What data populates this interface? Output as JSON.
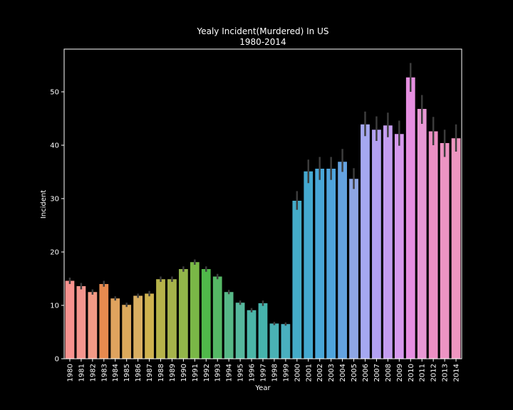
{
  "chart_data": {
    "type": "bar",
    "title": "Yealy Incident(Murdered) In US",
    "subtitle": "1980-2014",
    "xlabel": "Year",
    "ylabel": "Incident",
    "ylim": [
      0,
      58
    ],
    "yticks": [
      0,
      10,
      20,
      30,
      40,
      50
    ],
    "grid": false,
    "categories": [
      "1980",
      "1981",
      "1982",
      "1983",
      "1984",
      "1985",
      "1986",
      "1987",
      "1988",
      "1989",
      "1990",
      "1991",
      "1992",
      "1993",
      "1994",
      "1995",
      "1996",
      "1997",
      "1998",
      "1999",
      "2000",
      "2001",
      "2002",
      "2003",
      "2004",
      "2005",
      "2006",
      "2007",
      "2008",
      "2009",
      "2010",
      "2011",
      "2012",
      "2013",
      "2014"
    ],
    "values": [
      14.6,
      13.6,
      12.5,
      14.0,
      11.3,
      10.1,
      11.8,
      12.2,
      14.9,
      14.9,
      16.8,
      18.1,
      16.8,
      15.4,
      12.5,
      10.5,
      9.1,
      10.4,
      6.6,
      6.5,
      29.6,
      35.1,
      35.6,
      35.6,
      36.9,
      33.7,
      43.9,
      42.9,
      43.7,
      42.1,
      52.7,
      46.8,
      42.6,
      40.4,
      41.3
    ],
    "error_low": [
      14.0,
      13.0,
      12.0,
      13.5,
      10.9,
      9.7,
      11.4,
      11.7,
      14.4,
      14.4,
      16.3,
      17.6,
      16.3,
      14.9,
      12.1,
      10.1,
      8.7,
      9.9,
      6.3,
      6.2,
      27.9,
      32.9,
      33.5,
      33.5,
      35.0,
      31.8,
      41.7,
      40.8,
      41.5,
      39.9,
      50.0,
      44.0,
      40.0,
      37.8,
      38.8
    ],
    "error_high": [
      15.2,
      14.2,
      13.0,
      14.6,
      11.7,
      10.5,
      12.2,
      12.7,
      15.4,
      15.4,
      17.3,
      18.6,
      17.3,
      15.9,
      12.9,
      10.9,
      9.5,
      10.9,
      6.9,
      6.8,
      31.4,
      37.3,
      37.8,
      37.8,
      39.3,
      35.7,
      46.3,
      45.4,
      46.1,
      44.6,
      55.4,
      49.4,
      45.3,
      42.9,
      43.9
    ],
    "colors": [
      "#f7928f",
      "#f4958e",
      "#f29a86",
      "#e68a4f",
      "#e0a35e",
      "#dca95c",
      "#d9ae61",
      "#cfb24f",
      "#b6b34a",
      "#a5b34b",
      "#92b64a",
      "#7ab747",
      "#50b84a",
      "#55b865",
      "#57b887",
      "#56b79d",
      "#4bb5a7",
      "#46b3ac",
      "#4ab1b4",
      "#49afbf",
      "#44abc8",
      "#44a9d0",
      "#48a6d7",
      "#4fa4dc",
      "#64a2e0",
      "#8ea6e4",
      "#a5a8f0",
      "#b3a1f1",
      "#c49df0",
      "#d699ed",
      "#e68fe1",
      "#e898d4",
      "#ec8fc3",
      "#ed94c3",
      "#ee96c0"
    ]
  }
}
